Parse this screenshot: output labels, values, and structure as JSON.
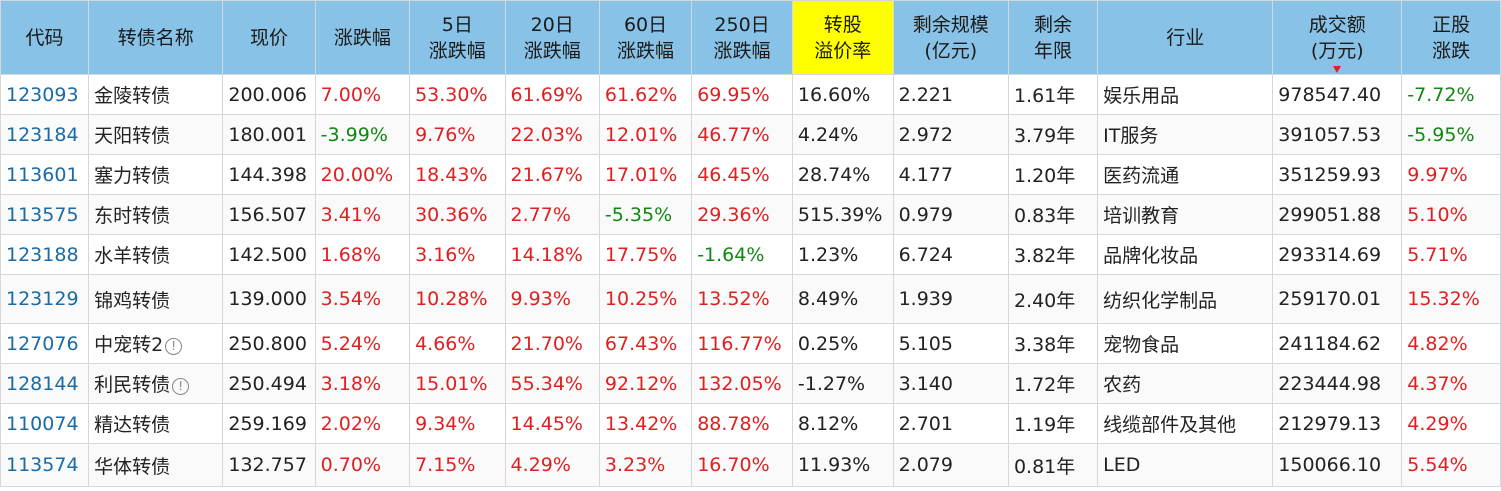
{
  "headers": {
    "code": "代码",
    "name": "转债名称",
    "price": "现价",
    "change": "涨跌幅",
    "d5_1": "5日",
    "d5_2": "涨跌幅",
    "d20_1": "20日",
    "d20_2": "涨跌幅",
    "d60_1": "60日",
    "d60_2": "涨跌幅",
    "d250_1": "250日",
    "d250_2": "涨跌幅",
    "premium_1": "转股",
    "premium_2": "溢价率",
    "scale_1": "剩余规模",
    "scale_2": "(亿元)",
    "years_1": "剩余",
    "years_2": "年限",
    "industry": "行业",
    "volume_1": "成交额",
    "volume_2": "(万元)",
    "stock_1": "正股",
    "stock_2": "涨跌"
  },
  "colors": {
    "header_bg": "#89c2e7",
    "highlight": "#ffff00",
    "up": "#e02020",
    "down": "#108810",
    "code": "#1a6aa8"
  },
  "rows": [
    {
      "code": "123093",
      "name": "金陵转债",
      "info": false,
      "price": "200.006",
      "change": "7.00%",
      "d5": "53.30%",
      "d20": "61.69%",
      "d60": "61.62%",
      "d250": "69.95%",
      "premium": "16.60%",
      "scale": "2.221",
      "years": "1.61年",
      "industry": "娱乐用品",
      "volume": "978547.40",
      "stock": "-7.72%"
    },
    {
      "code": "123184",
      "name": "天阳转债",
      "info": false,
      "price": "180.001",
      "change": "-3.99%",
      "d5": "9.76%",
      "d20": "22.03%",
      "d60": "12.01%",
      "d250": "46.77%",
      "premium": "4.24%",
      "scale": "2.972",
      "years": "3.79年",
      "industry": "IT服务",
      "volume": "391057.53",
      "stock": "-5.95%"
    },
    {
      "code": "113601",
      "name": "塞力转债",
      "info": false,
      "price": "144.398",
      "change": "20.00%",
      "d5": "18.43%",
      "d20": "21.67%",
      "d60": "17.01%",
      "d250": "46.45%",
      "premium": "28.74%",
      "scale": "4.177",
      "years": "1.20年",
      "industry": "医药流通",
      "volume": "351259.93",
      "stock": "9.97%"
    },
    {
      "code": "113575",
      "name": "东时转债",
      "info": false,
      "price": "156.507",
      "change": "3.41%",
      "d5": "30.36%",
      "d20": "2.77%",
      "d60": "-5.35%",
      "d250": "29.36%",
      "premium": "515.39%",
      "scale": "0.979",
      "years": "0.83年",
      "industry": "培训教育",
      "volume": "299051.88",
      "stock": "5.10%"
    },
    {
      "code": "123188",
      "name": "水羊转债",
      "info": false,
      "price": "142.500",
      "change": "1.68%",
      "d5": "3.16%",
      "d20": "14.18%",
      "d60": "17.75%",
      "d250": "-1.64%",
      "premium": "1.23%",
      "scale": "6.724",
      "years": "3.82年",
      "industry": "品牌化妆品",
      "volume": "293314.69",
      "stock": "5.71%"
    },
    {
      "code": "123129",
      "name": "锦鸡转债",
      "info": false,
      "price": "139.000",
      "change": "3.54%",
      "d5": "10.28%",
      "d20": "9.93%",
      "d60": "10.25%",
      "d250": "13.52%",
      "premium": "8.49%",
      "scale": "1.939",
      "years": "2.40年",
      "industry": "纺织化学制品",
      "volume": "259170.01",
      "stock": "15.32%"
    },
    {
      "code": "127076",
      "name": "中宠转2",
      "info": true,
      "price": "250.800",
      "change": "5.24%",
      "d5": "4.66%",
      "d20": "21.70%",
      "d60": "67.43%",
      "d250": "116.77%",
      "premium": "0.25%",
      "scale": "5.105",
      "years": "3.38年",
      "industry": "宠物食品",
      "volume": "241184.62",
      "stock": "4.82%"
    },
    {
      "code": "128144",
      "name": "利民转债",
      "info": true,
      "price": "250.494",
      "change": "3.18%",
      "d5": "15.01%",
      "d20": "55.34%",
      "d60": "92.12%",
      "d250": "132.05%",
      "premium": "-1.27%",
      "scale": "3.140",
      "years": "1.72年",
      "industry": "农药",
      "volume": "223444.98",
      "stock": "4.37%"
    },
    {
      "code": "110074",
      "name": "精达转债",
      "info": false,
      "price": "259.169",
      "change": "2.02%",
      "d5": "9.34%",
      "d20": "14.45%",
      "d60": "13.42%",
      "d250": "88.78%",
      "premium": "8.12%",
      "scale": "2.701",
      "years": "1.19年",
      "industry": "线缆部件及其他",
      "volume": "212979.13",
      "stock": "4.29%"
    },
    {
      "code": "113574",
      "name": "华体转债",
      "info": false,
      "price": "132.757",
      "change": "0.70%",
      "d5": "7.15%",
      "d20": "4.29%",
      "d60": "3.23%",
      "d250": "16.70%",
      "premium": "11.93%",
      "scale": "2.079",
      "years": "0.81年",
      "industry": "LED",
      "volume": "150066.10",
      "stock": "5.54%"
    }
  ]
}
